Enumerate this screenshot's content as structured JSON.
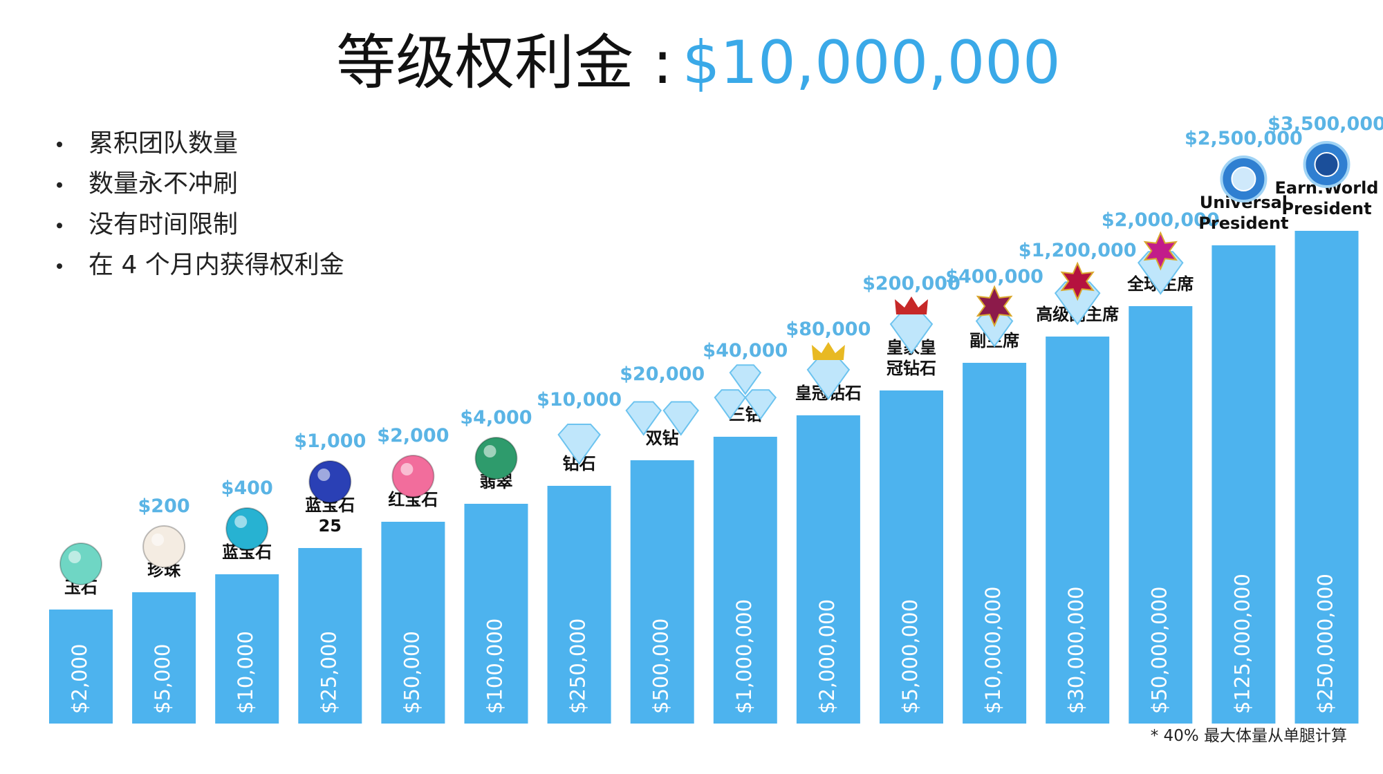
{
  "title": {
    "label": "等级权利金 :",
    "amount": "$10,000,000"
  },
  "bullets": [
    "累积团队数量",
    "数量永不冲刷",
    "没有时间限制",
    "在 4 个月内获得权利金"
  ],
  "tiers": [
    {
      "name": [
        "玉石"
      ],
      "reward": null,
      "volume": "$2,000"
    },
    {
      "name": [
        "珍珠"
      ],
      "reward": "$200",
      "volume": "$5,000"
    },
    {
      "name": [
        "蓝宝石"
      ],
      "reward": "$400",
      "volume": "$10,000"
    },
    {
      "name": [
        "蓝宝石",
        "25"
      ],
      "reward": "$1,000",
      "volume": "$25,000"
    },
    {
      "name": [
        "红宝石"
      ],
      "reward": "$2,000",
      "volume": "$50,000"
    },
    {
      "name": [
        "翡翠"
      ],
      "reward": "$4,000",
      "volume": "$100,000"
    },
    {
      "name": [
        "钻石"
      ],
      "reward": "$10,000",
      "volume": "$250,000"
    },
    {
      "name": [
        "双钻"
      ],
      "reward": "$20,000",
      "volume": "$500,000"
    },
    {
      "name": [
        "三钻"
      ],
      "reward": "$40,000",
      "volume": "$1,000,000"
    },
    {
      "name": [
        "皇冠钻石"
      ],
      "reward": "$80,000",
      "volume": "$2,000,000"
    },
    {
      "name": [
        "皇家皇",
        "冠钻石"
      ],
      "reward": "$200,000",
      "volume": "$5,000,000"
    },
    {
      "name": [
        "副主席"
      ],
      "reward": "$400,000",
      "volume": "$10,000,000"
    },
    {
      "name": [
        "高级副主席"
      ],
      "reward": "$1,200,000",
      "volume": "$30,000,000"
    },
    {
      "name": [
        "全球主席"
      ],
      "reward": "$2,000,000",
      "volume": "$50,000,000"
    },
    {
      "name": [
        "Universal",
        "President"
      ],
      "reward": "$2,500,000",
      "volume": "$125,000,000"
    },
    {
      "name": [
        "Earn.World",
        "President"
      ],
      "reward": "$3,500,000",
      "volume": "$250,000,000"
    }
  ],
  "footnote": "* 40% 最大体量从单腿计算"
}
